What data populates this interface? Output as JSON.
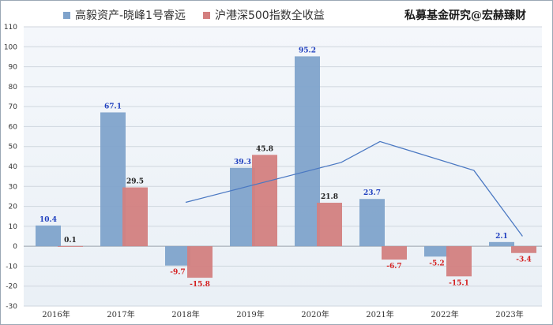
{
  "chart_data": {
    "type": "bar",
    "title": "私募基金研究@宏赫臻财",
    "categories": [
      "2016年",
      "2017年",
      "2018年",
      "2019年",
      "2020年",
      "2021年",
      "2022年",
      "2023年"
    ],
    "series": [
      {
        "name": "高毅资产-晓峰1号睿远",
        "color": "#7fa3cb",
        "label_color": "#1f3fbf",
        "values": [
          10.4,
          67.1,
          -9.7,
          39.3,
          95.2,
          23.7,
          -5.2,
          2.1
        ],
        "labels": [
          "10.4",
          "67.1",
          "-9.7",
          "39.3",
          "95.2",
          "23.7",
          "-5.2",
          "2.1"
        ]
      },
      {
        "name": "沪港深500指数全收益",
        "color": "#d37f7f",
        "label_color": "#222222",
        "neg_label_color": "#d42020",
        "values": [
          0.1,
          29.5,
          -15.8,
          45.8,
          21.8,
          -6.7,
          -15.1,
          -3.4
        ],
        "labels": [
          "0.1",
          "29.5",
          "-15.8",
          "45.8",
          "21.8",
          "-6.7",
          "-15.1",
          "-3.4"
        ]
      }
    ],
    "trend_line": {
      "color": "#4a78c2",
      "points": [
        [
          2,
          22
        ],
        [
          4.4,
          42
        ],
        [
          5,
          52.5
        ],
        [
          6.45,
          38
        ],
        [
          7.2,
          5
        ]
      ]
    },
    "y_ticks": [
      "110",
      "100",
      "90",
      "80",
      "70",
      "60",
      "50",
      "40",
      "30",
      "20",
      "10",
      "0",
      "-10",
      "-20",
      "-30"
    ],
    "ylim": [
      -30,
      110
    ],
    "xlabel": "",
    "ylabel": "",
    "grid": true
  }
}
